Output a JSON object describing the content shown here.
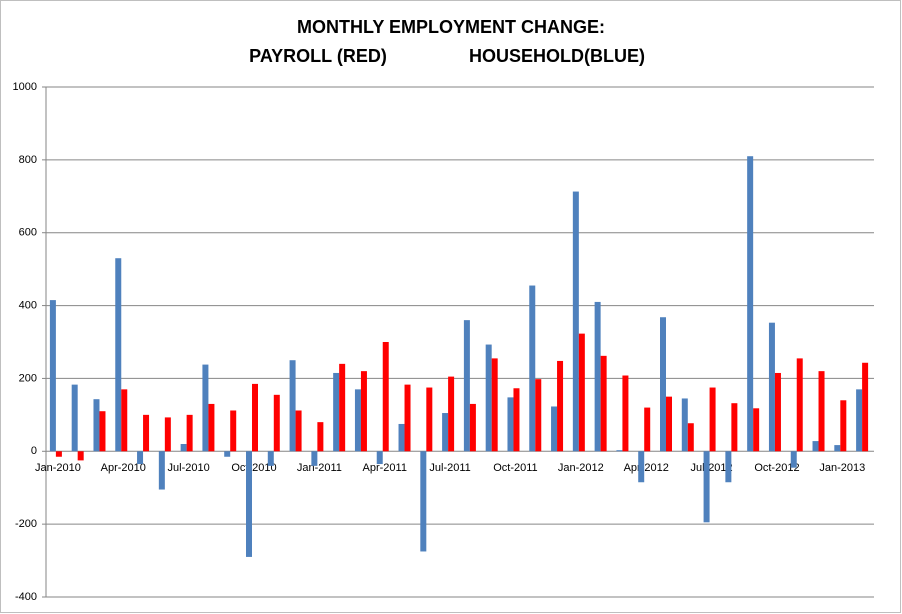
{
  "chart_data": {
    "type": "bar",
    "title": "MONTHLY EMPLOYMENT CHANGE:",
    "subtitle": [
      "PAYROLL (RED)",
      "HOUSEHOLD(BLUE)"
    ],
    "categories": [
      "Jan-2010",
      null,
      null,
      "Apr-2010",
      null,
      null,
      "Jul-2010",
      null,
      null,
      "Oct-2010",
      null,
      null,
      "Jan-2011",
      null,
      null,
      "Apr-2011",
      null,
      null,
      "Jul-2011",
      null,
      null,
      "Oct-2011",
      null,
      null,
      "Jan-2012",
      null,
      null,
      "Apr-2012",
      null,
      null,
      "Jul-2012",
      null,
      null,
      "Oct-2012",
      null,
      null,
      "Jan-2013",
      null
    ],
    "series": [
      {
        "color": "#4f81bd",
        "values": [
          415,
          183,
          143,
          530,
          -35,
          -105,
          20,
          238,
          -15,
          -290,
          -40,
          250,
          -40,
          215,
          170,
          -35,
          75,
          -275,
          105,
          360,
          293,
          148,
          455,
          123,
          713,
          410,
          3,
          -85,
          368,
          145,
          -195,
          -85,
          810,
          353,
          -45,
          28,
          17,
          170
        ]
      },
      {
        "color": "#ff0000",
        "values": [
          -15,
          -25,
          110,
          170,
          100,
          93,
          100,
          130,
          112,
          185,
          155,
          112,
          80,
          240,
          220,
          300,
          183,
          175,
          205,
          130,
          255,
          173,
          198,
          248,
          323,
          262,
          208,
          120,
          150,
          77,
          175,
          132,
          118,
          215,
          255,
          220,
          140,
          243
        ]
      }
    ],
    "ylim": [
      -400,
      1000
    ],
    "yticks": [
      -400,
      -200,
      0,
      200,
      400,
      600,
      800,
      1000
    ],
    "grid": true
  }
}
